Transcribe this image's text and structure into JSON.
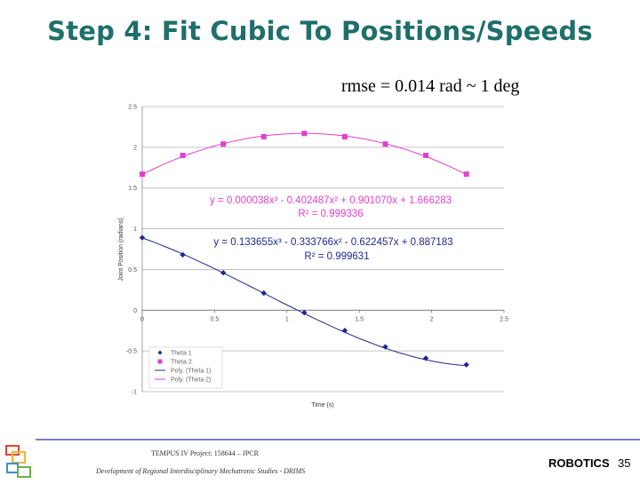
{
  "slide": {
    "title": "Step 4: Fit Cubic To Positions/Speeds",
    "subtitle": "rmse = 0.014 rad ~ 1 deg",
    "footer_project": "TEMPUS IV Project: 158644 – JPCR",
    "footer_program": "Development of Regional Interdisciplinary Mechatronic Studies - DRIMS",
    "footer_brand": "ROBOTICS",
    "page_number": "35"
  },
  "colors": {
    "title": "#1f6f6a",
    "theta1": "#1f2a8a",
    "theta2": "#e040d0",
    "footer_line": "#7a7fc9"
  },
  "chart_data": {
    "type": "scatter",
    "xlabel": "Time (s)",
    "ylabel": "Joint Position (radians)",
    "xlim": [
      0,
      2.5
    ],
    "ylim": [
      -1,
      2.5
    ],
    "xticks": [
      "0",
      "0.5",
      "1",
      "1.5",
      "2",
      "2.5"
    ],
    "yticks": [
      "-1",
      "-0.5",
      "0",
      "0.5",
      "1",
      "1.5",
      "2",
      "2.5"
    ],
    "grid": true,
    "legend_position": "bottom-left",
    "series": [
      {
        "name": "Theta 1",
        "marker": "diamond",
        "x": [
          0,
          0.28,
          0.56,
          0.84,
          1.12,
          1.4,
          1.68,
          1.96,
          2.24
        ],
        "y": [
          0.89,
          0.68,
          0.46,
          0.21,
          -0.03,
          -0.25,
          -0.45,
          -0.59,
          -0.67
        ]
      },
      {
        "name": "Theta 2",
        "marker": "square",
        "x": [
          0,
          0.28,
          0.56,
          0.84,
          1.12,
          1.4,
          1.68,
          1.96,
          2.24
        ],
        "y": [
          1.67,
          1.9,
          2.04,
          2.13,
          2.17,
          2.13,
          2.04,
          1.9,
          1.67
        ]
      },
      {
        "name": "Poly. (Theta 1)",
        "fit": [
          0.887183,
          -0.622457,
          -0.333766,
          0.133655
        ]
      },
      {
        "name": "Poly. (Theta 2)",
        "fit": [
          1.666283,
          0.90107,
          -0.402487,
          3.8e-05
        ]
      }
    ],
    "annotations": [
      {
        "text": "y = 0.000038x³ - 0.402487x² + 0.901070x + 1.666283",
        "color": "theta2"
      },
      {
        "text": "R² = 0.999336",
        "color": "theta2"
      },
      {
        "text": "y = 0.133655x³ - 0.333766x² - 0.622457x + 0.887183",
        "color": "theta1"
      },
      {
        "text": "R² = 0.999631",
        "color": "theta1"
      }
    ]
  }
}
